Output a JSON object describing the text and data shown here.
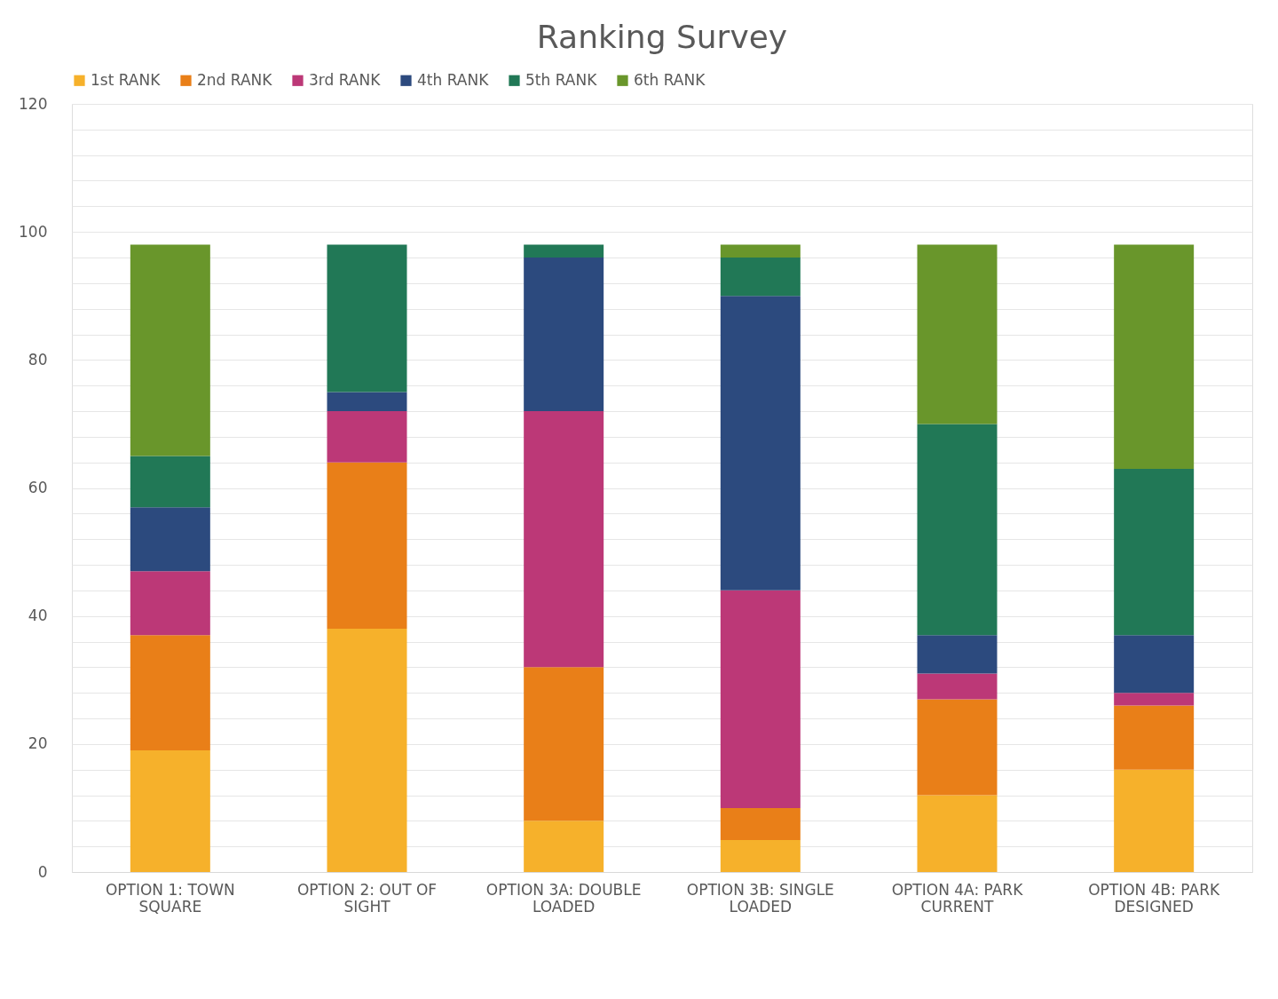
{
  "chart_data": {
    "type": "bar",
    "title": "Ranking Survey",
    "stacked": true,
    "legend": "top",
    "grid": "y",
    "categories": [
      "OPTION 1: TOWN SQUARE",
      "OPTION 2: OUT OF SIGHT",
      "OPTION 3A: DOUBLE LOADED",
      "OPTION 3B: SINGLE LOADED",
      "OPTION 4A: PARK CURRENT",
      "OPTION 4B: PARK DESIGNED"
    ],
    "ylim": [
      0,
      120
    ],
    "yticks": [
      0,
      {
        "value": 4,
        "label": null
      },
      {
        "value": 8,
        "label": null
      },
      {
        "value": 12,
        "label": null
      },
      {
        "value": 16,
        "label": null
      },
      20,
      {
        "value": 24,
        "label": null
      },
      {
        "value": 28,
        "label": null
      },
      {
        "value": 32,
        "label": null
      },
      {
        "value": 36,
        "label": null
      },
      40,
      {
        "value": 44,
        "label": null
      },
      {
        "value": 48,
        "label": null
      },
      {
        "value": 52,
        "label": null
      },
      {
        "value": 56,
        "label": null
      },
      60,
      {
        "value": 64,
        "label": null
      },
      {
        "value": 68,
        "label": null
      },
      {
        "value": 72,
        "label": null
      },
      {
        "value": 76,
        "label": null
      },
      80,
      {
        "value": 84,
        "label": null
      },
      {
        "value": 88,
        "label": null
      },
      {
        "value": 92,
        "label": null
      },
      {
        "value": 96,
        "label": null
      },
      100,
      {
        "value": 104,
        "label": null
      },
      {
        "value": 108,
        "label": null
      },
      {
        "value": 112,
        "label": null
      },
      {
        "value": 116,
        "label": null
      },
      120
    ],
    "series": [
      {
        "name": "1st RANK",
        "color": "#f6b12b",
        "values": [
          19,
          38,
          8,
          5,
          12,
          16
        ]
      },
      {
        "name": "2nd RANK",
        "color": "#e97f18",
        "values": [
          18,
          26,
          24,
          5,
          15,
          10
        ]
      },
      {
        "name": "3rd RANK",
        "color": "#bc3877",
        "values": [
          10,
          8,
          40,
          34,
          4,
          2
        ]
      },
      {
        "name": "4th RANK",
        "color": "#2c4a7e",
        "values": [
          10,
          3,
          24,
          46,
          6,
          9
        ]
      },
      {
        "name": "5th RANK",
        "color": "#217856",
        "values": [
          8,
          23,
          2,
          6,
          33,
          26
        ]
      },
      {
        "name": "6th RANK",
        "color": "#69962b",
        "values": [
          33,
          0,
          0,
          2,
          28,
          35
        ]
      }
    ]
  }
}
